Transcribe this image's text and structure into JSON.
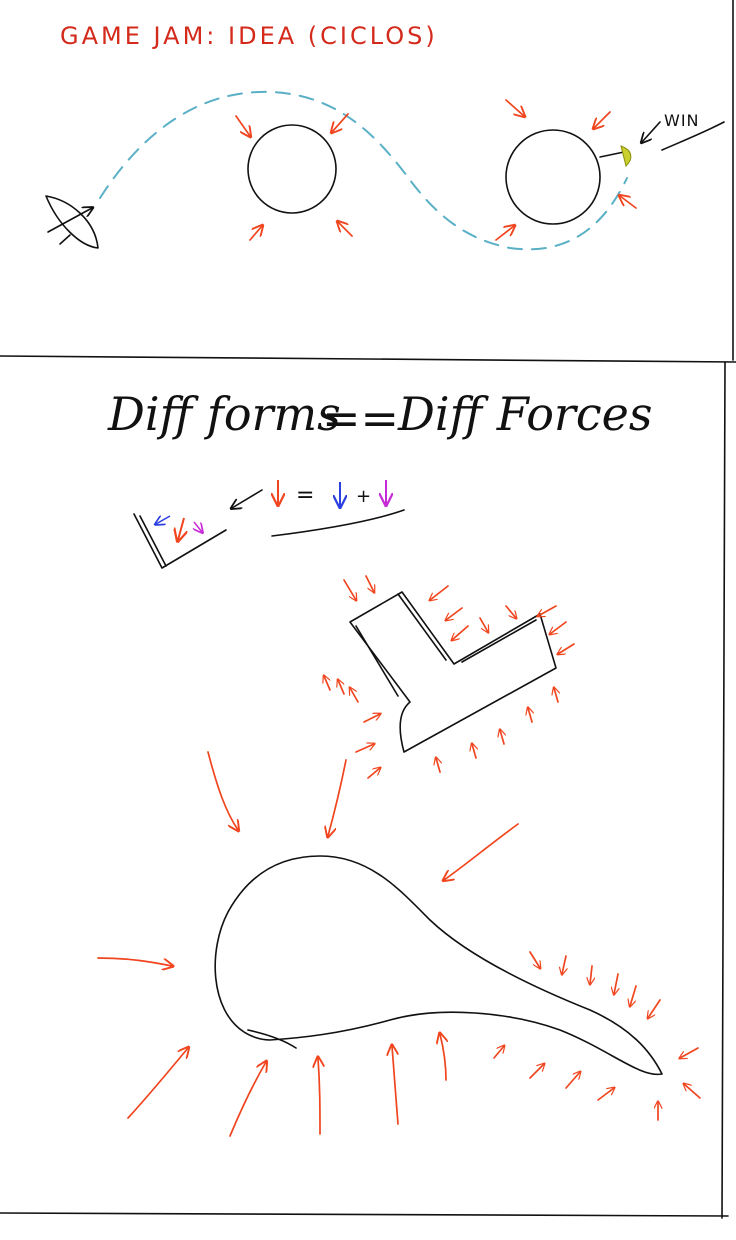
{
  "colors": {
    "ink": "#111111",
    "force": "#f0451e",
    "title": "#d42a1c",
    "path": "#5ab0c6",
    "goal": "#c9cf2c",
    "blue": "#2a3fe0",
    "magenta": "#c62ad6"
  },
  "panel_top": {
    "title": "GAME JAM: IDEA (CICLOS)",
    "win_label": "WIN",
    "icons": [
      "bow-icon",
      "planet-icon",
      "goal-flag-icon"
    ]
  },
  "panel_bottom": {
    "heading_left": "Diff forms",
    "heading_eq": "==",
    "heading_right": "Diff Forces",
    "equation": {
      "eq": "=",
      "plus": "+"
    }
  }
}
